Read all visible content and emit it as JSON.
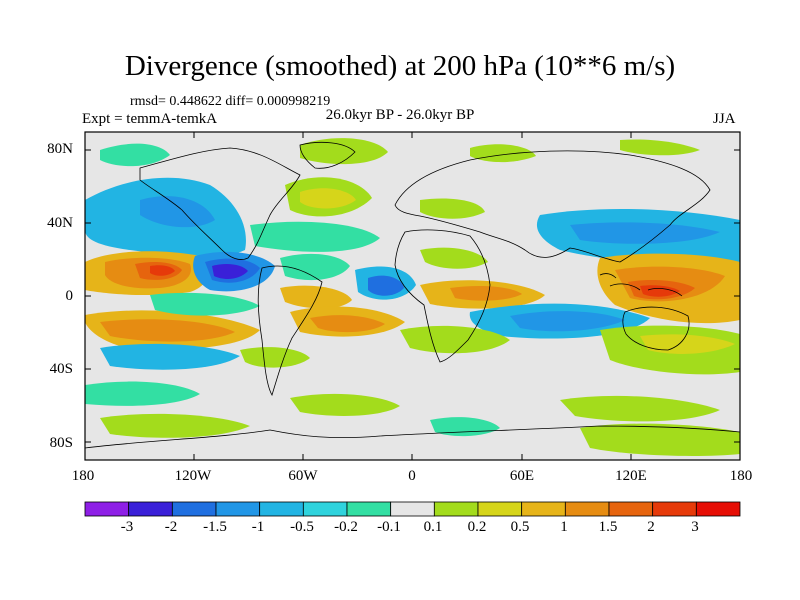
{
  "title": "Divergence (smoothed) at 200 hPa (10**6 m/s)",
  "stats": "rmsd= 0.448622 diff= 0.000998219",
  "experiment": "Expt = temmA-temkA",
  "period": "26.0kyr BP - 26.0kyr BP",
  "season": "JJA",
  "map": {
    "lon_range": [
      -180,
      180
    ],
    "lat_range": [
      -90,
      90
    ],
    "y_ticks": [
      "80N",
      "40N",
      "0",
      "40S",
      "80S"
    ],
    "x_ticks": [
      "180",
      "120W",
      "60W",
      "0",
      "60E",
      "120E",
      "180"
    ]
  },
  "colorbar": {
    "labels": [
      "-3",
      "-2",
      "-1.5",
      "-1",
      "-0.5",
      "-0.2",
      "-0.1",
      "0.1",
      "0.2",
      "0.5",
      "1",
      "1.5",
      "2",
      "3"
    ],
    "colors": [
      "#8e1fe6",
      "#3a20d8",
      "#1f6fe0",
      "#2196e6",
      "#22b4e3",
      "#2fd3dd",
      "#33dfa3",
      "#e6e6e6",
      "#a3dc1c",
      "#d6d51a",
      "#e6b419",
      "#e68c12",
      "#e6640e",
      "#e63a0a",
      "#e60e05"
    ]
  }
}
